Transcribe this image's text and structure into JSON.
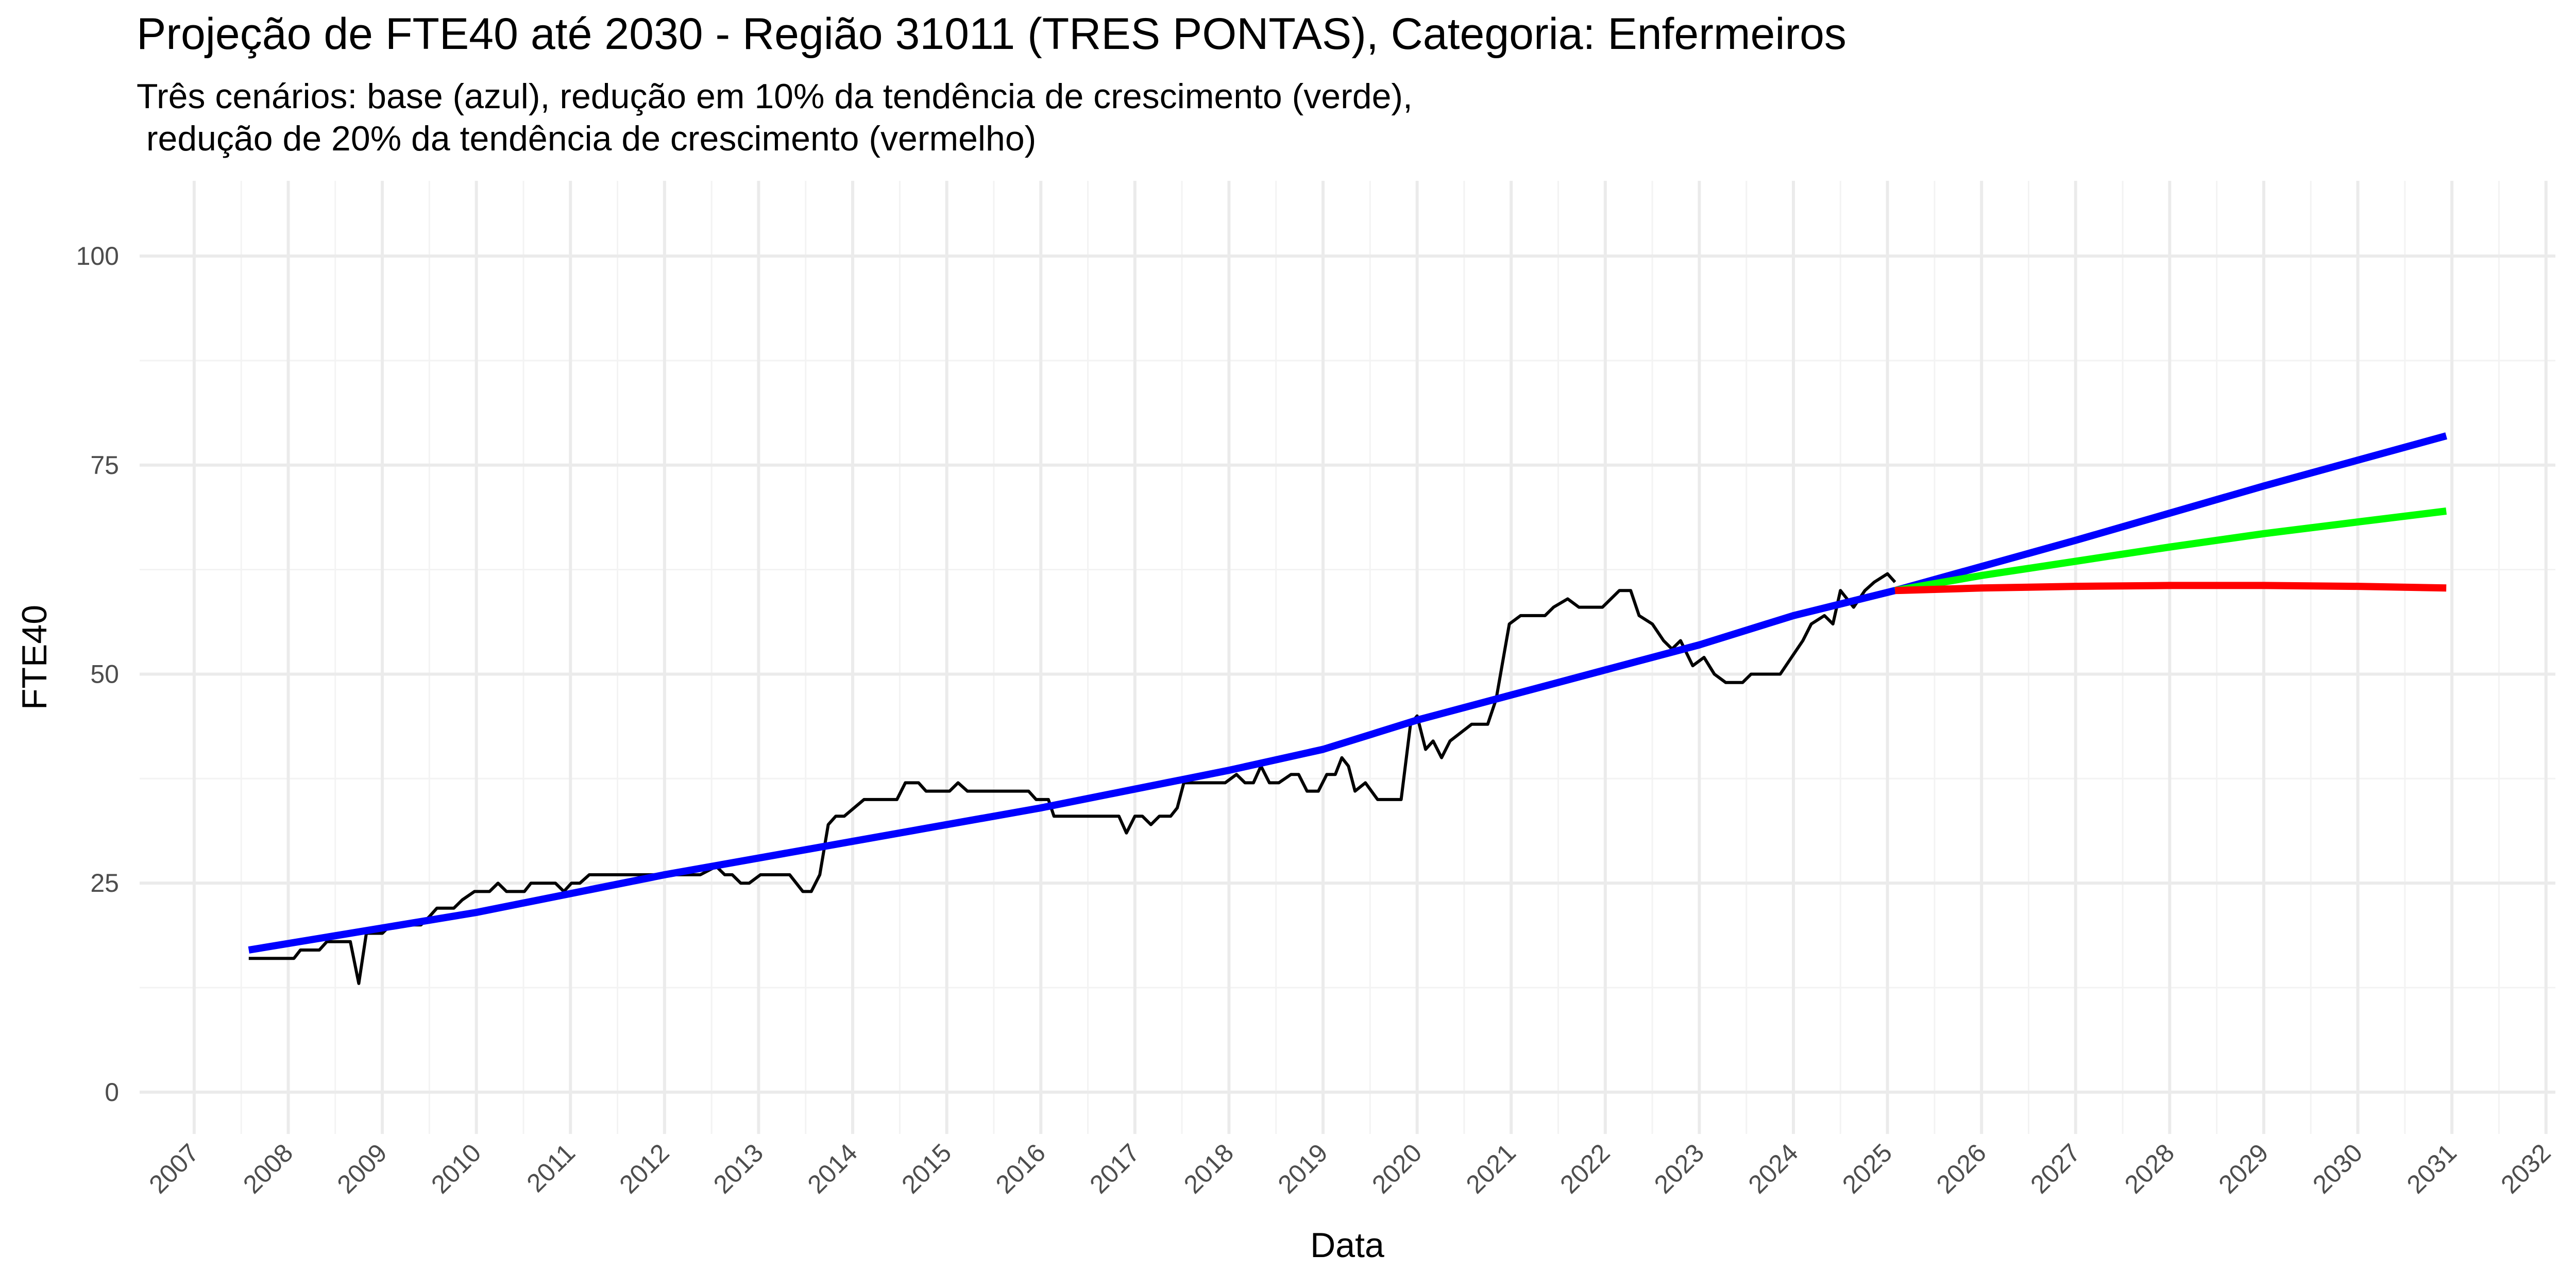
{
  "chart_data": {
    "type": "line",
    "title": "Projeção de FTE40 até 2030 - Região 31011 (TRES PONTAS), Categoria: Enfermeiros",
    "subtitle": [
      "Três cenários: base (azul), redução em 10% da tendência de crescimento (verde),",
      " redução de 20% da tendência de crescimento (vermelho)"
    ],
    "x_label": "Data",
    "y_label": "FTE40",
    "xlim": [
      2006.42,
      2032.1
    ],
    "xticks": [
      2007,
      2008,
      2009,
      2010,
      2011,
      2012,
      2013,
      2014,
      2015,
      2016,
      2017,
      2018,
      2019,
      2020,
      2021,
      2022,
      2023,
      2024,
      2025,
      2026,
      2027,
      2028,
      2029,
      2030,
      2031,
      2032
    ],
    "ylim": [
      -5,
      109
    ],
    "yticks": [
      0,
      25,
      50,
      75,
      100
    ],
    "grid": true,
    "series": [
      {
        "color": "#000000",
        "x": [
          2007.58,
          2008.06,
          2008.13,
          2008.33,
          2008.41,
          2008.66,
          2008.75,
          2008.83,
          2009.0,
          2009.09,
          2009.41,
          2009.5,
          2009.58,
          2009.76,
          2009.85,
          2009.98,
          2010.14,
          2010.23,
          2010.32,
          2010.51,
          2010.58,
          2010.84,
          2010.93,
          2011.01,
          2011.1,
          2011.2,
          2012.38,
          2012.55,
          2012.64,
          2012.72,
          2012.81,
          2012.9,
          2013.02,
          2013.33,
          2013.47,
          2013.56,
          2013.65,
          2013.74,
          2013.82,
          2013.91,
          2014.12,
          2014.47,
          2014.56,
          2014.7,
          2014.78,
          2015.03,
          2015.12,
          2015.22,
          2015.87,
          2015.95,
          2016.08,
          2016.14,
          2016.83,
          2016.91,
          2017.0,
          2017.08,
          2017.17,
          2017.26,
          2017.38,
          2017.45,
          2017.52,
          2017.96,
          2018.08,
          2018.17,
          2018.26,
          2018.34,
          2018.43,
          2018.53,
          2018.66,
          2018.74,
          2018.83,
          2018.95,
          2019.04,
          2019.13,
          2019.2,
          2019.27,
          2019.34,
          2019.45,
          2019.58,
          2019.83,
          2019.93,
          2020.0,
          2020.09,
          2020.17,
          2020.26,
          2020.35,
          2020.58,
          2020.67,
          2020.75,
          2020.84,
          2020.98,
          2021.1,
          2021.36,
          2021.45,
          2021.6,
          2021.72,
          2021.97,
          2022.15,
          2022.27,
          2022.36,
          2022.5,
          2022.62,
          2022.71,
          2022.8,
          2022.93,
          2023.05,
          2023.16,
          2023.28,
          2023.46,
          2023.55,
          2023.86,
          2023.98,
          2024.1,
          2024.19,
          2024.33,
          2024.42,
          2024.5,
          2024.64,
          2024.76,
          2024.86,
          2025.0,
          2025.08
        ],
        "values": [
          16,
          16,
          17,
          17,
          18,
          18,
          13,
          19,
          19,
          20,
          20,
          21,
          22,
          22,
          23,
          24,
          24,
          25,
          24,
          24,
          25,
          25,
          24,
          25,
          25,
          26,
          26,
          27,
          26,
          26,
          25,
          25,
          26,
          26,
          24,
          24,
          26,
          32,
          33,
          33,
          35,
          35,
          37,
          37,
          36,
          36,
          37,
          36,
          36,
          35,
          35,
          33,
          33,
          31,
          33,
          33,
          32,
          33,
          33,
          34,
          37,
          37,
          38,
          37,
          37,
          39,
          37,
          37,
          38,
          38,
          36,
          36,
          38,
          38,
          40,
          39,
          36,
          37,
          35,
          35,
          44,
          45,
          41,
          42,
          40,
          42,
          44,
          44,
          44,
          47,
          56,
          57,
          57,
          58,
          59,
          58,
          58,
          60,
          60,
          57,
          56,
          54,
          53,
          54,
          51,
          52,
          50,
          49,
          49,
          50,
          50,
          52,
          54,
          56,
          57,
          56,
          60,
          58,
          60,
          61,
          62,
          61
        ]
      },
      {
        "color": "#0000ff",
        "x": [
          2007.58,
          2010,
          2012,
          2014,
          2016,
          2018,
          2019,
          2020,
          2021,
          2022,
          2023,
          2024,
          2025.08,
          2027,
          2029,
          2030.94
        ],
        "values": [
          17,
          21.5,
          26,
          30,
          34,
          38.5,
          41,
          44.5,
          47.5,
          50.5,
          53.5,
          57,
          60,
          66,
          72.5,
          78.5
        ]
      },
      {
        "color": "#00ff00",
        "x": [
          2025.08,
          2026,
          2027,
          2028,
          2029,
          2030,
          2030.94
        ],
        "values": [
          60,
          61.8,
          63.5,
          65.2,
          66.8,
          68.2,
          69.5
        ]
      },
      {
        "color": "#ff0000",
        "x": [
          2025.08,
          2026,
          2027,
          2028,
          2029,
          2030,
          2030.94
        ],
        "values": [
          60,
          60.3,
          60.5,
          60.6,
          60.6,
          60.5,
          60.3
        ]
      }
    ]
  }
}
